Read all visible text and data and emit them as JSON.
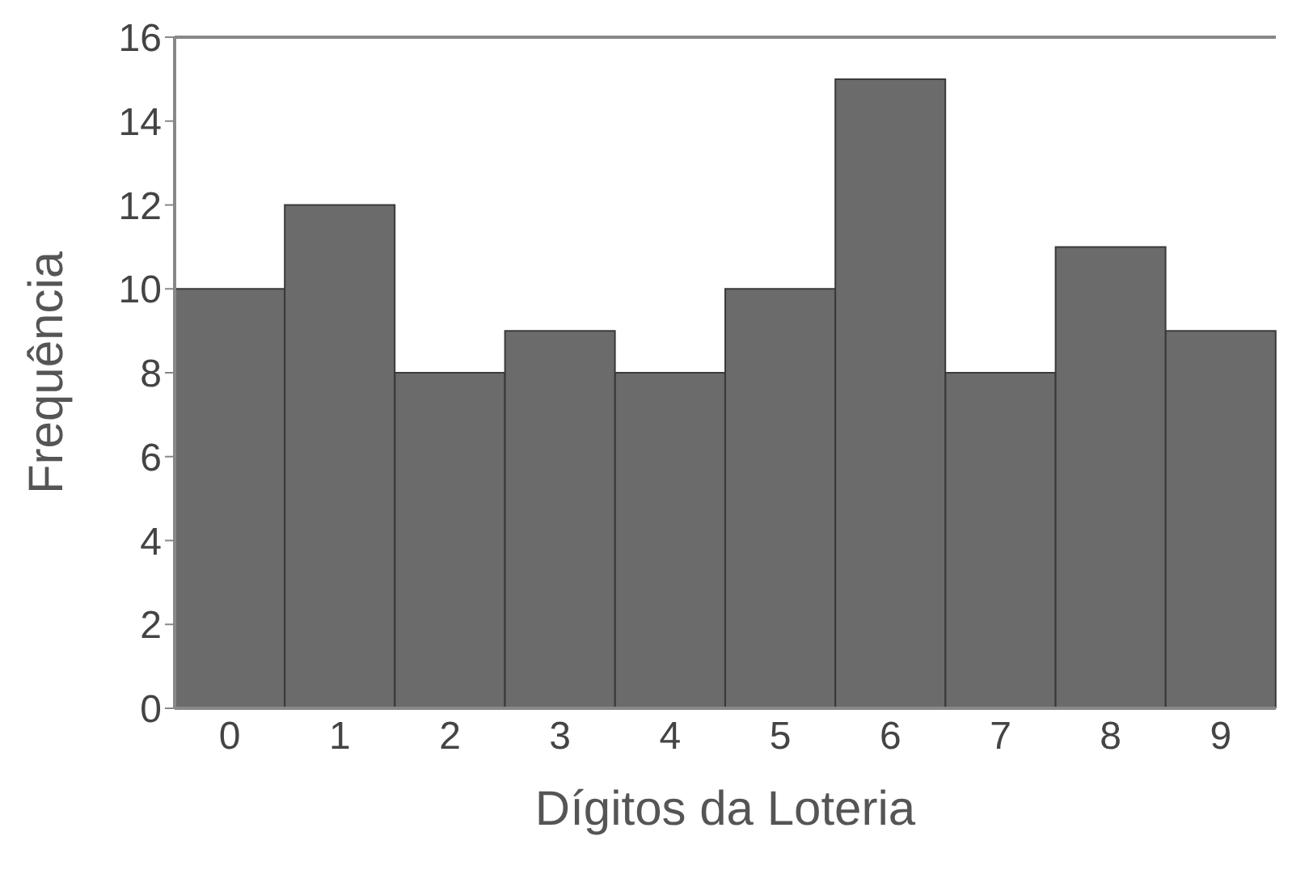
{
  "chart_data": {
    "type": "bar",
    "xlabel": "Dígitos da Loteria",
    "ylabel": "Frequência",
    "categories": [
      "0",
      "1",
      "2",
      "3",
      "4",
      "5",
      "6",
      "7",
      "8",
      "9"
    ],
    "values": [
      10,
      12,
      8,
      9,
      8,
      10,
      15,
      8,
      11,
      9
    ],
    "color": "#6b6b6b",
    "ylim": [
      0,
      16
    ],
    "yticks": [
      0,
      2,
      4,
      6,
      8,
      10,
      12,
      14,
      16
    ],
    "grid": false,
    "legend": false
  }
}
